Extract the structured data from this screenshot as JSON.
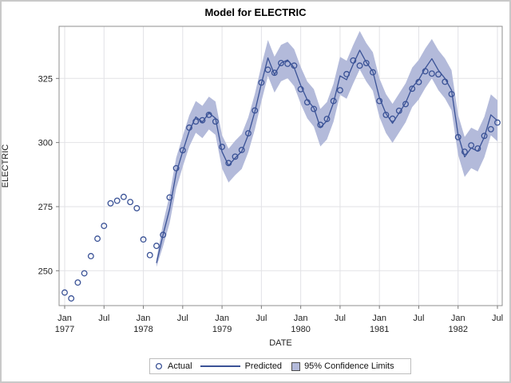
{
  "title": "Model for ELECTRIC",
  "axes": {
    "y_label": "ELECTRIC",
    "x_label": "DATE",
    "y_ticks": [
      250,
      275,
      300,
      325
    ],
    "x_ticks": [
      {
        "month": "Jan",
        "year": "1977"
      },
      {
        "month": "Jul",
        "year": ""
      },
      {
        "month": "Jan",
        "year": "1978"
      },
      {
        "month": "Jul",
        "year": ""
      },
      {
        "month": "Jan",
        "year": "1979"
      },
      {
        "month": "Jul",
        "year": ""
      },
      {
        "month": "Jan",
        "year": "1980"
      },
      {
        "month": "Jul",
        "year": ""
      },
      {
        "month": "Jan",
        "year": "1981"
      },
      {
        "month": "Jul",
        "year": ""
      },
      {
        "month": "Jan",
        "year": "1982"
      },
      {
        "month": "Jul",
        "year": ""
      }
    ]
  },
  "legend": {
    "actual_label": "Actual",
    "predicted_label": "Predicted",
    "ci_label": "95% Confidence Limits"
  },
  "colors": {
    "band": "#b3bada",
    "line": "#3a5296",
    "marker": "#3a5296",
    "grid": "#e2e2e6",
    "frame": "#8f8f8f",
    "tick": "#7a7a7a",
    "text": "#222222"
  },
  "chart_data": {
    "type": "line",
    "title": "Model for ELECTRIC",
    "xlabel": "DATE",
    "ylabel": "ELECTRIC",
    "x_start": "Jan 1977",
    "x_end": "Jul 1982",
    "x_frequency": "monthly",
    "ylim": [
      236,
      345
    ],
    "grid": true,
    "legend_position": "bottom",
    "x_tick_labels": [
      "Jan 1977",
      "Jul",
      "Jan 1978",
      "Jul",
      "Jan 1979",
      "Jul",
      "Jan 1980",
      "Jul",
      "Jan 1981",
      "Jul",
      "Jan 1982",
      "Jul"
    ],
    "series": [
      {
        "name": "Actual",
        "style": "open-circle-scatter",
        "start_month_index": 0,
        "values": [
          241.5,
          239.2,
          245.4,
          249.0,
          255.7,
          262.5,
          267.5,
          276.3,
          277.3,
          278.8,
          276.8,
          274.4,
          262.2,
          256.1,
          259.7,
          264.0,
          278.6,
          290.0,
          297.0,
          305.8,
          308.2,
          308.7,
          310.8,
          308.2,
          298.3,
          292.0,
          294.5,
          297.1,
          303.6,
          312.5,
          323.4,
          328.4,
          327.2,
          331.0,
          330.7,
          330.0,
          320.8,
          315.7,
          313.1,
          306.9,
          309.2,
          316.2,
          320.4,
          326.7,
          332.0,
          330.0,
          331.0,
          327.4,
          316.2,
          310.8,
          309.3,
          312.4,
          315.0,
          321.0,
          323.6,
          327.8,
          326.9,
          326.6,
          323.7,
          318.9,
          302.1,
          296.4,
          298.9,
          297.7,
          302.6,
          305.2,
          307.8
        ]
      },
      {
        "name": "Predicted",
        "style": "solid-line",
        "start_month_index": 14,
        "values": [
          253.0,
          264.0,
          274.0,
          288.0,
          296.5,
          304.5,
          310.0,
          308.0,
          311.5,
          309.5,
          296.4,
          291.0,
          294.0,
          296.5,
          303.0,
          312.0,
          323.0,
          333.0,
          326.5,
          331.0,
          332.2,
          329.2,
          322.3,
          316.6,
          313.5,
          305.8,
          308.5,
          315.5,
          326.0,
          324.5,
          330.5,
          336.0,
          331.3,
          327.7,
          317.5,
          311.3,
          307.5,
          311.5,
          315.5,
          321.5,
          324.5,
          329.0,
          332.7,
          328.2,
          325.0,
          320.4,
          303.0,
          294.4,
          297.9,
          296.6,
          302.1,
          310.8,
          308.5
        ]
      },
      {
        "name": "95% Confidence Limits (upper)",
        "style": "band-upper",
        "start_month_index": 14,
        "values": [
          254.5,
          268.5,
          279.5,
          294.0,
          302.5,
          310.6,
          316.2,
          314.3,
          317.9,
          316.0,
          302.9,
          297.6,
          300.7,
          303.3,
          309.8,
          318.9,
          330.0,
          340.0,
          333.5,
          338.1,
          339.3,
          336.4,
          329.5,
          323.8,
          320.8,
          313.1,
          315.8,
          322.9,
          333.4,
          331.9,
          338.0,
          343.5,
          338.8,
          335.2,
          325.0,
          318.9,
          315.1,
          319.1,
          323.1,
          329.2,
          332.2,
          336.7,
          340.4,
          336.0,
          332.8,
          328.2,
          310.8,
          302.2,
          305.8,
          304.5,
          310.0,
          318.8,
          316.5
        ]
      },
      {
        "name": "95% Confidence Limits (lower)",
        "style": "band-lower",
        "start_month_index": 14,
        "values": [
          251.5,
          259.5,
          268.5,
          282.0,
          290.5,
          298.4,
          303.8,
          301.7,
          305.1,
          303.0,
          289.9,
          284.4,
          287.3,
          289.7,
          296.2,
          305.1,
          316.0,
          326.0,
          319.5,
          323.9,
          325.1,
          322.0,
          315.1,
          309.4,
          306.2,
          298.5,
          301.2,
          308.1,
          318.6,
          317.1,
          323.0,
          328.5,
          323.8,
          320.2,
          310.0,
          303.7,
          299.9,
          303.9,
          307.9,
          313.8,
          316.8,
          321.3,
          325.0,
          320.4,
          317.2,
          312.6,
          295.2,
          286.6,
          290.0,
          288.7,
          294.2,
          302.8,
          300.5
        ]
      }
    ]
  }
}
